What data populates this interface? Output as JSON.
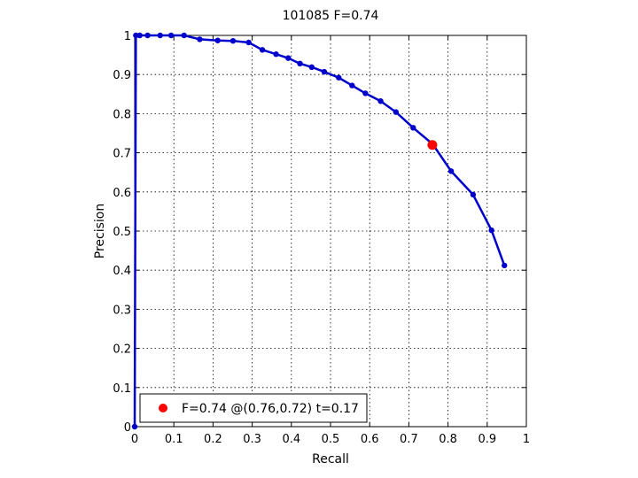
{
  "chart_data": {
    "type": "line",
    "title": "101085 F=0.74",
    "xlabel": "Recall",
    "ylabel": "Precision",
    "xlim": [
      0,
      1
    ],
    "ylim": [
      0,
      1
    ],
    "grid": true,
    "xticks": [
      "0",
      "0.1",
      "0.2",
      "0.3",
      "0.4",
      "0.5",
      "0.6",
      "0.7",
      "0.8",
      "0.9",
      "1"
    ],
    "yticks": [
      "0",
      "0.1",
      "0.2",
      "0.3",
      "0.4",
      "0.5",
      "0.6",
      "0.7",
      "0.8",
      "0.9",
      "1"
    ],
    "series": [
      {
        "color": "#0000cc",
        "x": [
          0,
          0.003,
          0.013,
          0.033,
          0.065,
          0.093,
          0.126,
          0.166,
          0.212,
          0.251,
          0.291,
          0.326,
          0.361,
          0.392,
          0.422,
          0.452,
          0.484,
          0.521,
          0.555,
          0.589,
          0.628,
          0.667,
          0.711,
          0.761,
          0.808,
          0.864,
          0.911,
          0.944
        ],
        "y": [
          0,
          1,
          1,
          1,
          1,
          1,
          1,
          0.99,
          0.987,
          0.986,
          0.982,
          0.963,
          0.952,
          0.942,
          0.928,
          0.919,
          0.907,
          0.892,
          0.872,
          0.852,
          0.832,
          0.804,
          0.764,
          0.722,
          0.653,
          0.593,
          0.502,
          0.412
        ]
      }
    ],
    "marker": {
      "x": 0.76,
      "y": 0.72,
      "color": "#ff0000"
    },
    "legend": {
      "location": "bottom-left",
      "entry": "F=0.74 @(0.76,0.72) t=0.17"
    }
  }
}
